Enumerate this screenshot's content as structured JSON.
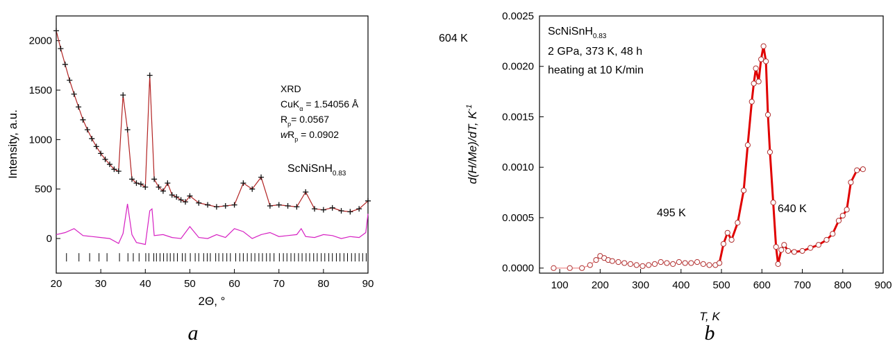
{
  "chart_data": [
    {
      "panel": "a",
      "type": "scatter",
      "xlabel": "2Θ, °",
      "ylabel": "Intensity, a.u.",
      "xlim": [
        20,
        90
      ],
      "ylim": [
        -350,
        2250
      ],
      "xticks": [
        20,
        30,
        40,
        50,
        60,
        70,
        80,
        90
      ],
      "yticks": [
        0,
        500,
        1000,
        1500,
        2000
      ],
      "annotations": {
        "line1": "XRD",
        "cuk_main": "CuK",
        "cuk_sub": "α",
        "cuk_rest": " = 1.54056 Å",
        "rp_main": "R",
        "rp_sub": "p",
        "rp_rest": "= 0.0567",
        "wrp_italic": "w",
        "wrp_main": "R",
        "wrp_sub": "p",
        "wrp_rest": " = 0.0902",
        "compound_main": "ScNiSnH",
        "compound_sub": "0.83"
      },
      "observed": {
        "x": [
          20,
          21,
          22,
          23,
          24,
          25,
          26,
          27,
          28,
          29,
          30,
          31,
          32,
          33,
          34,
          35,
          36,
          37,
          38,
          39,
          40,
          41,
          42,
          43,
          44,
          45,
          46,
          47,
          48,
          49,
          50,
          52,
          54,
          56,
          58,
          60,
          62,
          64,
          66,
          68,
          70,
          72,
          74,
          76,
          78,
          80,
          82,
          84,
          86,
          88,
          90
        ],
        "y": [
          2100,
          1920,
          1760,
          1600,
          1460,
          1330,
          1200,
          1100,
          1010,
          930,
          860,
          800,
          750,
          700,
          680,
          1450,
          1100,
          600,
          560,
          550,
          520,
          1650,
          600,
          520,
          480,
          560,
          440,
          420,
          390,
          370,
          430,
          360,
          340,
          320,
          330,
          340,
          560,
          500,
          620,
          330,
          340,
          330,
          320,
          470,
          300,
          290,
          310,
          280,
          270,
          300,
          380
        ]
      },
      "difference": {
        "x": [
          20,
          22,
          24,
          26,
          28,
          30,
          32,
          34,
          35,
          36,
          37,
          38,
          40,
          41,
          41.5,
          42,
          44,
          46,
          48,
          50,
          52,
          54,
          56,
          58,
          60,
          62,
          64,
          66,
          68,
          70,
          72,
          74,
          75,
          76,
          78,
          80,
          82,
          84,
          86,
          88,
          89.5,
          90
        ],
        "y": [
          40,
          60,
          100,
          30,
          20,
          10,
          0,
          -50,
          50,
          350,
          40,
          -40,
          -60,
          280,
          300,
          30,
          40,
          10,
          0,
          120,
          10,
          0,
          40,
          10,
          100,
          70,
          0,
          40,
          60,
          20,
          30,
          40,
          100,
          20,
          10,
          40,
          30,
          0,
          20,
          10,
          60,
          250
        ]
      },
      "reflection_ticks": [
        22.3,
        25.1,
        27.5,
        29.6,
        31.4,
        34.2,
        36.1,
        37.3,
        38.6,
        40.1,
        40.8,
        41.9,
        42.5,
        43.3,
        44.1,
        44.9,
        45.6,
        46.4,
        47.2,
        48.3,
        49.0,
        50.1,
        51.2,
        52.0,
        53.1,
        53.9,
        54.6,
        55.8,
        56.5,
        57.4,
        58.3,
        59.1,
        60.3,
        61.2,
        62.0,
        62.9,
        63.8,
        64.6,
        65.5,
        66.3,
        67.2,
        68.0,
        68.9,
        70.1,
        71.0,
        71.8,
        72.7,
        73.5,
        74.4,
        75.2,
        76.1,
        76.9,
        77.8,
        78.6,
        79.5,
        80.3,
        81.2,
        82.0,
        82.9,
        83.7,
        84.6,
        85.4,
        86.3,
        87.1,
        88.0,
        88.8,
        89.6
      ]
    },
    {
      "panel": "b",
      "type": "line",
      "xlabel": "T, K",
      "ylabel": "d(H/Me)/dT, K",
      "ylabel_sup": "-1",
      "xlim": [
        50,
        900
      ],
      "ylim": [
        -5e-05,
        0.0025
      ],
      "xticks": [
        100,
        200,
        300,
        400,
        500,
        600,
        700,
        800,
        900
      ],
      "yticks": [
        "0.0000",
        "0.0005",
        "0.0010",
        "0.0015",
        "0.0020",
        "0.0025"
      ],
      "info": {
        "compound_main": "ScNiSnH",
        "compound_sub": "0.83",
        "line2": "2 GPa, 373 K, 48 h",
        "line3": "heating at 10 K/min"
      },
      "peak_labels": [
        {
          "text": "604 K",
          "x": 604,
          "y": 0.00222
        },
        {
          "text": "495 K",
          "x": 495,
          "y": 0.00044
        },
        {
          "text": "640 K",
          "x": 640,
          "y": 0.00042
        }
      ],
      "series": [
        {
          "x": [
            85,
            125,
            155,
            175,
            190,
            200,
            210,
            220,
            230,
            245,
            260,
            275,
            290,
            305,
            320,
            335,
            350,
            365,
            380,
            395,
            410,
            425,
            440,
            455,
            470,
            485,
            495,
            505,
            515,
            525,
            540,
            555,
            565,
            575,
            580,
            585,
            592,
            598,
            604,
            610,
            615,
            620,
            628,
            635,
            640,
            648,
            655,
            665,
            680,
            700,
            720,
            740,
            760,
            775,
            790,
            800,
            810,
            820,
            835,
            850
          ],
          "y": [
            0,
            0,
            0,
            3e-05,
            8e-05,
            0.00012,
            0.0001,
            8e-05,
            7e-05,
            6e-05,
            5e-05,
            4e-05,
            3e-05,
            2e-05,
            3e-05,
            4e-05,
            6e-05,
            5e-05,
            4e-05,
            6e-05,
            5e-05,
            5e-05,
            6e-05,
            4e-05,
            3e-05,
            3e-05,
            5e-05,
            0.00024,
            0.00035,
            0.00028,
            0.00045,
            0.00077,
            0.00122,
            0.00165,
            0.00183,
            0.00198,
            0.00185,
            0.00207,
            0.0022,
            0.00205,
            0.00152,
            0.00115,
            0.00065,
            0.00021,
            4e-05,
            0.00018,
            0.00023,
            0.00017,
            0.00016,
            0.00017,
            0.0002,
            0.00023,
            0.00028,
            0.00034,
            0.00047,
            0.00052,
            0.00058,
            0.00085,
            0.00097,
            0.00098
          ]
        }
      ]
    }
  ],
  "colors": {
    "observed": "#111111",
    "calculated": "#b22222",
    "difference": "#d61fc2",
    "red_line": "#e00000",
    "marker_fill": "#ffffff"
  },
  "panel_labels": [
    "a",
    "b"
  ]
}
